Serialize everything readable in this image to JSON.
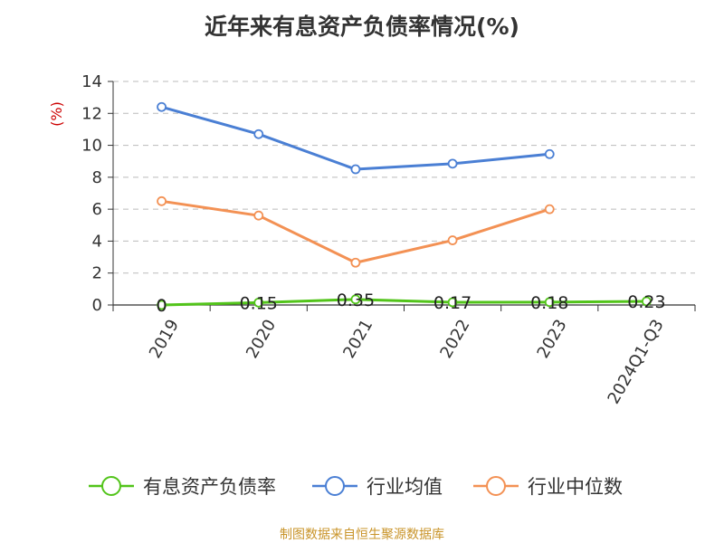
{
  "chart_data": {
    "type": "line",
    "title": "近年来有息资产负债率情况(%)",
    "ylabel": "(%)",
    "xlabel": "",
    "categories": [
      "2019",
      "2020",
      "2021",
      "2022",
      "2023",
      "2024Q1-Q3"
    ],
    "ylim": [
      0,
      14
    ],
    "yticks": [
      0,
      2,
      4,
      6,
      8,
      10,
      12,
      14
    ],
    "grid": true,
    "legend_position": "bottom",
    "series": [
      {
        "name": "有息资产负债率",
        "color": "#52c41a",
        "values": [
          0,
          0.15,
          0.35,
          0.17,
          0.18,
          0.23
        ],
        "labels": [
          "0",
          "0.15",
          "0.35",
          "0.17",
          "0.18",
          "0.23"
        ]
      },
      {
        "name": "行业均值",
        "color": "#4a7fd4",
        "values": [
          12.4,
          10.7,
          8.5,
          8.85,
          9.45,
          null
        ]
      },
      {
        "name": "行业中位数",
        "color": "#f39154",
        "values": [
          6.5,
          5.6,
          2.65,
          4.05,
          6.0,
          null
        ]
      }
    ]
  },
  "source": "制图数据来自恒生聚源数据库"
}
